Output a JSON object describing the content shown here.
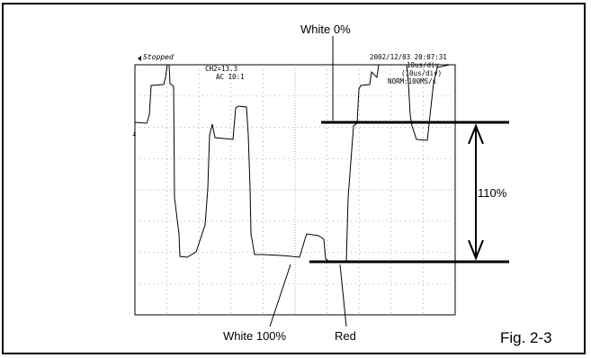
{
  "scope": {
    "status": "Stopped",
    "channel_scale": "CH2=13.3",
    "coupling": "AC  10:1",
    "datetime": "2002/12/03  20:07:31",
    "timebase": "10us/div",
    "timebase_sub": "(10us/div)",
    "acquisition": "NORM:100MS/s"
  },
  "annotations": {
    "white_0": "White 0%",
    "range": "110%",
    "white_100": "White 100%",
    "red": "Red",
    "figure": "Fig. 2-3"
  },
  "colors": {
    "trace": "#000000",
    "grid": "#9a9a9a",
    "background": "#ffffff"
  }
}
